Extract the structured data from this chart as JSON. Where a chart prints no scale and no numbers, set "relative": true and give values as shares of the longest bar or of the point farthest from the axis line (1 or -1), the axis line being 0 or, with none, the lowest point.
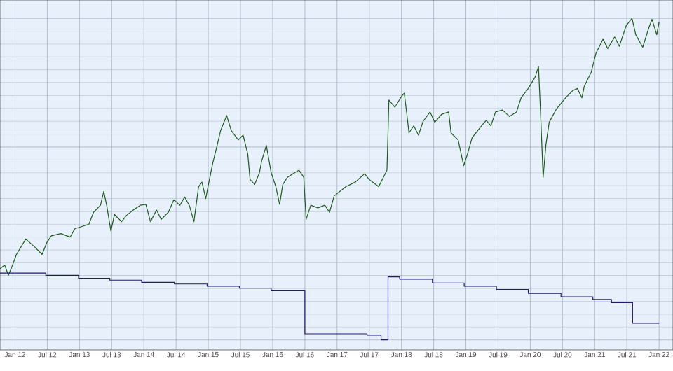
{
  "chart_data": {
    "type": "line",
    "relative": true,
    "tick_labels": "x",
    "grid": true,
    "xlim": [
      "2011-10-07",
      "2022-03-19"
    ],
    "xticks": [
      {
        "value": "2012-01",
        "label": "Jan 12"
      },
      {
        "value": "2012-07",
        "label": "Jul 12"
      },
      {
        "value": "2013-01",
        "label": "Jan 13"
      },
      {
        "value": "2013-07",
        "label": "Jul 13"
      },
      {
        "value": "2014-01",
        "label": "Jan 14"
      },
      {
        "value": "2014-07",
        "label": "Jul 14"
      },
      {
        "value": "2015-01",
        "label": "Jan 15"
      },
      {
        "value": "2015-07",
        "label": "Jul 15"
      },
      {
        "value": "2016-01",
        "label": "Jan 16"
      },
      {
        "value": "2016-07",
        "label": "Jul 16"
      },
      {
        "value": "2017-01",
        "label": "Jan 17"
      },
      {
        "value": "2017-07",
        "label": "Jul 17"
      },
      {
        "value": "2018-01",
        "label": "Jan 18"
      },
      {
        "value": "2018-07",
        "label": "Jul 18"
      },
      {
        "value": "2019-01",
        "label": "Jan 19"
      },
      {
        "value": "2019-07",
        "label": "Jul 19"
      },
      {
        "value": "2020-01",
        "label": "Jan 20"
      },
      {
        "value": "2020-07",
        "label": "Jul 20"
      },
      {
        "value": "2021-01",
        "label": "Jan 21"
      },
      {
        "value": "2021-07",
        "label": "Jul 21"
      },
      {
        "value": "2022-01",
        "label": "Jan 22"
      }
    ],
    "series": [
      {
        "color": "#1e5a1e",
        "x": [
          "2011-10-07",
          "2011-11-03",
          "2011-11-24",
          "2011-12-13",
          "2012-01-09",
          "2012-03-01",
          "2012-04-23",
          "2012-06-02",
          "2012-06-28",
          "2012-07-24",
          "2012-09-17",
          "2012-11-09",
          "2012-12-05",
          "2013-01-15",
          "2013-02-24",
          "2013-03-20",
          "2013-04-29",
          "2013-05-17",
          "2013-06-03",
          "2013-06-27",
          "2013-07-17",
          "2013-08-27",
          "2013-09-23",
          "2013-11-02",
          "2013-12-11",
          "2014-01-12",
          "2014-02-08",
          "2014-03-12",
          "2014-04-08",
          "2014-05-18",
          "2014-06-19",
          "2014-07-23",
          "2014-08-19",
          "2014-09-15",
          "2014-10-11",
          "2014-11-07",
          "2014-11-26",
          "2014-12-17",
          "2014-12-30",
          "2015-01-26",
          "2015-02-22",
          "2015-03-10",
          "2015-04-14",
          "2015-05-10",
          "2015-06-19",
          "2015-07-16",
          "2015-08-12",
          "2015-08-25",
          "2015-09-21",
          "2015-10-17",
          "2015-10-30",
          "2015-11-26",
          "2015-12-23",
          "2016-01-19",
          "2016-02-10",
          "2016-02-28",
          "2016-03-24",
          "2016-05-03",
          "2016-05-29",
          "2016-06-25",
          "2016-07-08",
          "2016-08-04",
          "2016-09-14",
          "2016-10-23",
          "2016-11-19",
          "2016-12-15",
          "2017-02-21",
          "2017-04-13",
          "2017-06-05",
          "2017-07-01",
          "2017-08-24",
          "2017-10-10",
          "2017-10-21",
          "2017-11-25",
          "2018-01-04",
          "2018-01-17",
          "2018-01-30",
          "2018-02-13",
          "2018-03-10",
          "2018-04-06",
          "2018-05-02",
          "2018-06-11",
          "2018-07-07",
          "2018-08-16",
          "2018-09-25",
          "2018-10-08",
          "2018-11-18",
          "2018-12-19",
          "2019-01-10",
          "2019-02-06",
          "2019-03-29",
          "2019-04-25",
          "2019-05-21",
          "2019-06-17",
          "2019-07-26",
          "2019-09-05",
          "2019-10-14",
          "2019-11-10",
          "2019-12-20",
          "2020-01-29",
          "2020-02-17",
          "2020-02-28",
          "2020-03-13",
          "2020-03-29",
          "2020-04-17",
          "2020-05-26",
          "2020-07-19",
          "2020-08-28",
          "2020-09-24",
          "2020-10-20",
          "2020-11-03",
          "2020-12-12",
          "2021-01-08",
          "2021-02-18",
          "2021-03-14",
          "2021-04-23",
          "2021-05-19",
          "2021-06-28",
          "2021-07-30",
          "2021-08-21",
          "2021-09-30",
          "2021-11-04",
          "2021-11-22",
          "2021-12-18",
          "2022-01-01"
        ],
        "values": [
          0.222,
          0.233,
          0.201,
          0.227,
          0.266,
          0.314,
          0.288,
          0.266,
          0.302,
          0.324,
          0.331,
          0.32,
          0.346,
          0.353,
          0.36,
          0.397,
          0.419,
          0.462,
          0.419,
          0.339,
          0.39,
          0.368,
          0.387,
          0.404,
          0.419,
          0.422,
          0.368,
          0.404,
          0.375,
          0.397,
          0.436,
          0.419,
          0.445,
          0.419,
          0.368,
          0.477,
          0.491,
          0.44,
          0.477,
          0.549,
          0.608,
          0.651,
          0.698,
          0.651,
          0.622,
          0.637,
          0.578,
          0.499,
          0.484,
          0.52,
          0.557,
          0.605,
          0.52,
          0.477,
          0.422,
          0.484,
          0.506,
          0.52,
          0.528,
          0.506,
          0.375,
          0.419,
          0.411,
          0.419,
          0.397,
          0.448,
          0.477,
          0.491,
          0.517,
          0.499,
          0.477,
          0.528,
          0.746,
          0.724,
          0.76,
          0.767,
          0.709,
          0.644,
          0.666,
          0.637,
          0.68,
          0.709,
          0.677,
          0.702,
          0.709,
          0.644,
          0.622,
          0.542,
          0.578,
          0.629,
          0.666,
          0.683,
          0.666,
          0.709,
          0.715,
          0.695,
          0.709,
          0.753,
          0.782,
          0.818,
          0.85,
          0.717,
          0.506,
          0.608,
          0.677,
          0.717,
          0.753,
          0.775,
          0.782,
          0.753,
          0.789,
          0.833,
          0.891,
          0.935,
          0.906,
          0.942,
          0.913,
          0.978,
          1,
          0.949,
          0.91,
          0.971,
          0.997,
          0.949,
          0.988
        ]
      },
      {
        "type": "step",
        "color": "#1c1c78",
        "x": [
          "2011-10-07",
          "2012-06-23",
          "2012-12-26",
          "2013-06-21",
          "2013-12-19",
          "2014-06-22",
          "2014-12-25",
          "2015-06-25",
          "2015-12-23",
          "2016-07-01",
          "2017-06-19",
          "2017-09-07",
          "2017-10-16",
          "2017-12-21",
          "2018-06-24",
          "2018-12-22",
          "2019-06-22",
          "2019-12-20",
          "2020-06-23",
          "2020-12-21",
          "2021-04-05",
          "2021-08-03",
          "2022-01-01"
        ],
        "values": [
          0.208,
          0.201,
          0.192,
          0.186,
          0.179,
          0.174,
          0.167,
          0.161,
          0.153,
          0.019,
          0.015,
          0,
          0.196,
          0.189,
          0.177,
          0.167,
          0.157,
          0.145,
          0.134,
          0.126,
          0.116,
          0.052,
          0.052
        ]
      }
    ]
  }
}
